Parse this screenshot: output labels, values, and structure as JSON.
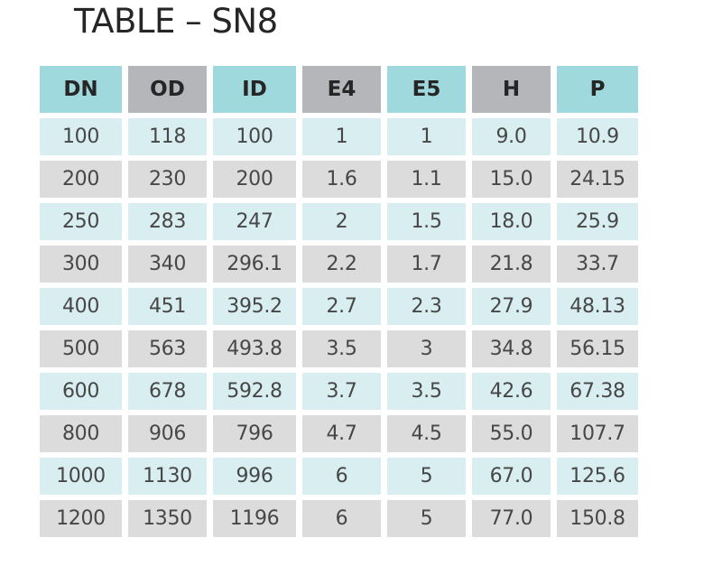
{
  "title": "TABLE – SN8",
  "colors": {
    "header_blue": "#9fd9de",
    "header_grey": "#b4b6b9",
    "row_blue": "#d8eef0",
    "row_grey": "#dcdcdd"
  },
  "table": {
    "headers": [
      "DN",
      "OD",
      "ID",
      "E4",
      "E5",
      "H",
      "P"
    ],
    "rows": [
      [
        "100",
        "118",
        "100",
        "1",
        "1",
        "9.0",
        "10.9"
      ],
      [
        "200",
        "230",
        "200",
        "1.6",
        "1.1",
        "15.0",
        "24.15"
      ],
      [
        "250",
        "283",
        "247",
        "2",
        "1.5",
        "18.0",
        "25.9"
      ],
      [
        "300",
        "340",
        "296.1",
        "2.2",
        "1.7",
        "21.8",
        "33.7"
      ],
      [
        "400",
        "451",
        "395.2",
        "2.7",
        "2.3",
        "27.9",
        "48.13"
      ],
      [
        "500",
        "563",
        "493.8",
        "3.5",
        "3",
        "34.8",
        "56.15"
      ],
      [
        "600",
        "678",
        "592.8",
        "3.7",
        "3.5",
        "42.6",
        "67.38"
      ],
      [
        "800",
        "906",
        "796",
        "4.7",
        "4.5",
        "55.0",
        "107.7"
      ],
      [
        "1000",
        "1130",
        "996",
        "6",
        "5",
        "67.0",
        "125.6"
      ],
      [
        "1200",
        "1350",
        "1196",
        "6",
        "5",
        "77.0",
        "150.8"
      ]
    ]
  }
}
